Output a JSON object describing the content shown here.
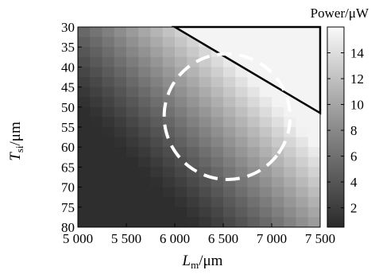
{
  "chart_data": {
    "type": "heatmap",
    "title": "",
    "xlabel": {
      "main": "L",
      "sub": "m",
      "unit": "/μm"
    },
    "ylabel": {
      "main": "T",
      "sub": "si",
      "unit": "/μm"
    },
    "xlim": [
      5000,
      7500
    ],
    "ylim": [
      30,
      80
    ],
    "x_ticks": [
      {
        "value": 5000,
        "label": "5 000"
      },
      {
        "value": 5500,
        "label": "5 500"
      },
      {
        "value": 6000,
        "label": "6 000"
      },
      {
        "value": 6500,
        "label": "6 500"
      },
      {
        "value": 7000,
        "label": "7 000"
      },
      {
        "value": 7500,
        "label": "7 500"
      }
    ],
    "y_ticks": [
      {
        "value": 30,
        "label": "30"
      },
      {
        "value": 35,
        "label": "35"
      },
      {
        "value": 40,
        "label": "40"
      },
      {
        "value": 45,
        "label": "45"
      },
      {
        "value": 50,
        "label": "50"
      },
      {
        "value": 55,
        "label": "55"
      },
      {
        "value": 60,
        "label": "60"
      },
      {
        "value": 65,
        "label": "65"
      },
      {
        "value": 70,
        "label": "70"
      },
      {
        "value": 75,
        "label": "75"
      },
      {
        "value": 80,
        "label": "80"
      }
    ],
    "colorbar": {
      "title": "Power/μW",
      "range": [
        0.5,
        16
      ],
      "colormap": "gray",
      "ticks": [
        "2",
        "4",
        "6",
        "8",
        "10",
        "12",
        "14"
      ],
      "tick_values": [
        2,
        4,
        6,
        8,
        10,
        12,
        14
      ]
    },
    "grid": {
      "x_start": 5000,
      "x_step": 125,
      "nx": 20,
      "y_start": 30,
      "y_step": 2.5,
      "ny": 20
    },
    "power_model": {
      "description_of_values": "Power (μW) at each (Lm, Tsi) cell",
      "base": 0.8,
      "max": 15.5
    },
    "annotations": {
      "saturated_triangle": {
        "vertices": [
          [
            6000,
            30
          ],
          [
            7500,
            30
          ],
          [
            7500,
            51.5
          ]
        ],
        "outline_color": "#000000"
      },
      "optimal_ellipse": {
        "center": [
          6540,
          52.4
        ],
        "semi_axis_a_um": 880,
        "semi_axis_b_um": 10.3,
        "rotation_deg": 38,
        "stroke_color": "#ffffff",
        "dashed": true
      }
    }
  }
}
